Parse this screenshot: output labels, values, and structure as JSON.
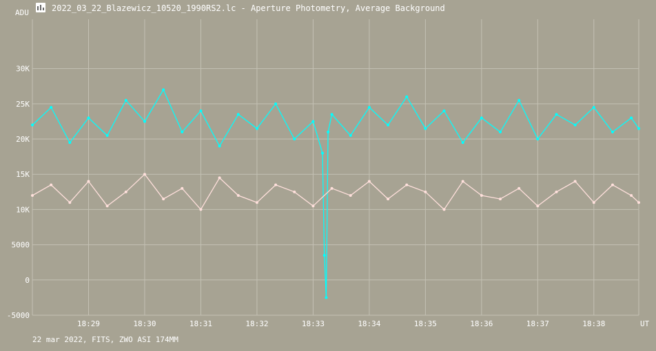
{
  "window": {
    "title": "2022_03_22_Blazewicz_10520_1990RS2.lc - Aperture Photometry, Average Background",
    "icon": "app-chart-icon"
  },
  "footer": "22 mar 2022, FITS, ZWO ASI 174MM",
  "colors": {
    "background": "#a7a393",
    "grid": "#c4c1b4",
    "series_cyan": "#00ffff",
    "series_pink": "#ffe0dc"
  },
  "chart_data": {
    "type": "line",
    "ylabel": "ADU",
    "xunit": "UT",
    "ylim": [
      -5000,
      37000
    ],
    "xlim": [
      "18:28:00",
      "18:38:48"
    ],
    "y_ticks": [
      {
        "value": -5000,
        "label": "-5000"
      },
      {
        "value": 0,
        "label": "0"
      },
      {
        "value": 5000,
        "label": "5000"
      },
      {
        "value": 10000,
        "label": "10K"
      },
      {
        "value": 15000,
        "label": "15K"
      },
      {
        "value": 20000,
        "label": "20K"
      },
      {
        "value": 25000,
        "label": "25K"
      },
      {
        "value": 30000,
        "label": "30K"
      }
    ],
    "x_ticks": [
      {
        "value": "18:29",
        "label": "18:29"
      },
      {
        "value": "18:30",
        "label": "18:30"
      },
      {
        "value": "18:31",
        "label": "18:31"
      },
      {
        "value": "18:32",
        "label": "18:32"
      },
      {
        "value": "18:33",
        "label": "18:33"
      },
      {
        "value": "18:34",
        "label": "18:34"
      },
      {
        "value": "18:35",
        "label": "18:35"
      },
      {
        "value": "18:36",
        "label": "18:36"
      },
      {
        "value": "18:37",
        "label": "18:37"
      },
      {
        "value": "18:38",
        "label": "18:38"
      }
    ],
    "grid": true,
    "series": [
      {
        "color": "#00ffff",
        "x": [
          "18:28:00",
          "18:28:20",
          "18:28:40",
          "18:29:00",
          "18:29:20",
          "18:29:40",
          "18:30:00",
          "18:30:20",
          "18:30:40",
          "18:31:00",
          "18:31:20",
          "18:31:40",
          "18:32:00",
          "18:32:20",
          "18:32:40",
          "18:33:00",
          "18:33:10",
          "18:33:12",
          "18:33:14",
          "18:33:16",
          "18:33:20",
          "18:33:40",
          "18:34:00",
          "18:34:20",
          "18:34:40",
          "18:35:00",
          "18:35:20",
          "18:35:40",
          "18:36:00",
          "18:36:20",
          "18:36:40",
          "18:37:00",
          "18:37:20",
          "18:37:40",
          "18:38:00",
          "18:38:20",
          "18:38:40",
          "18:38:48"
        ],
        "y": [
          22000,
          24500,
          19500,
          23000,
          20500,
          25500,
          22500,
          27000,
          21000,
          24000,
          19000,
          23500,
          21500,
          25000,
          20000,
          22500,
          18000,
          3500,
          -2500,
          21000,
          23500,
          20500,
          24500,
          22000,
          26000,
          21500,
          24000,
          19500,
          23000,
          21000,
          25500,
          20000,
          23500,
          22000,
          24500,
          21000,
          23000,
          21500
        ]
      },
      {
        "color": "#ffe0dc",
        "x": [
          "18:28:00",
          "18:28:20",
          "18:28:40",
          "18:29:00",
          "18:29:20",
          "18:29:40",
          "18:30:00",
          "18:30:20",
          "18:30:40",
          "18:31:00",
          "18:31:20",
          "18:31:40",
          "18:32:00",
          "18:32:20",
          "18:32:40",
          "18:33:00",
          "18:33:20",
          "18:33:40",
          "18:34:00",
          "18:34:20",
          "18:34:40",
          "18:35:00",
          "18:35:20",
          "18:35:40",
          "18:36:00",
          "18:36:20",
          "18:36:40",
          "18:37:00",
          "18:37:20",
          "18:37:40",
          "18:38:00",
          "18:38:20",
          "18:38:40",
          "18:38:48"
        ],
        "y": [
          12000,
          13500,
          11000,
          14000,
          10500,
          12500,
          15000,
          11500,
          13000,
          10000,
          14500,
          12000,
          11000,
          13500,
          12500,
          10500,
          13000,
          12000,
          14000,
          11500,
          13500,
          12500,
          10000,
          14000,
          12000,
          11500,
          13000,
          10500,
          12500,
          14000,
          11000,
          13500,
          12000,
          11000
        ]
      }
    ]
  }
}
